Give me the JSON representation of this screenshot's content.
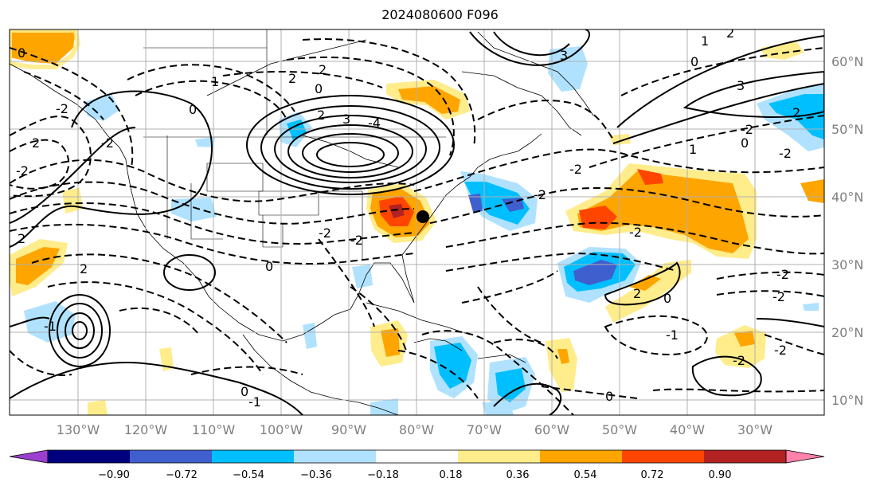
{
  "title": "2024080600 F096",
  "lon_labels": [
    "130°W",
    "120°W",
    "110°W",
    "100°W",
    "90°W",
    "80°W",
    "70°W",
    "60°W",
    "50°W",
    "40°W",
    "30°W"
  ],
  "lat_labels": [
    "60°N",
    "50°N",
    "40°N",
    "30°N",
    "20°N",
    "10°N"
  ],
  "colorbar": {
    "ticks": [
      "−0.90",
      "−0.72",
      "−0.54",
      "−0.36",
      "−0.18",
      "0.18",
      "0.36",
      "0.54",
      "0.72",
      "0.90"
    ],
    "colors": [
      "#9b3fd0",
      "#00007f",
      "#3f5fcf",
      "#00bfff",
      "#b0e2ff",
      "#ffffff",
      "#ffec8b",
      "#ffa500",
      "#ff4500",
      "#b22222",
      "#ff82ab"
    ]
  },
  "contour_labels": [
    "0",
    "1",
    "2",
    "2",
    "0",
    "-2",
    "2",
    "3",
    "-4",
    "-2",
    "2",
    "0",
    "-2",
    "3",
    "2",
    "-2",
    "2",
    "-2",
    "-2",
    "-2",
    "-2",
    "0",
    "2",
    "1",
    "-2",
    "0",
    "0",
    "1",
    "3",
    "2",
    "0",
    "-1",
    "-2",
    "-2",
    "-2",
    "-1",
    "0",
    "2",
    "0",
    "-1",
    "-2",
    "-2"
  ],
  "marker": "point",
  "colors": {
    "ocean": "#ffffff",
    "grid": "#b0b0b0",
    "contour": "#000000"
  }
}
